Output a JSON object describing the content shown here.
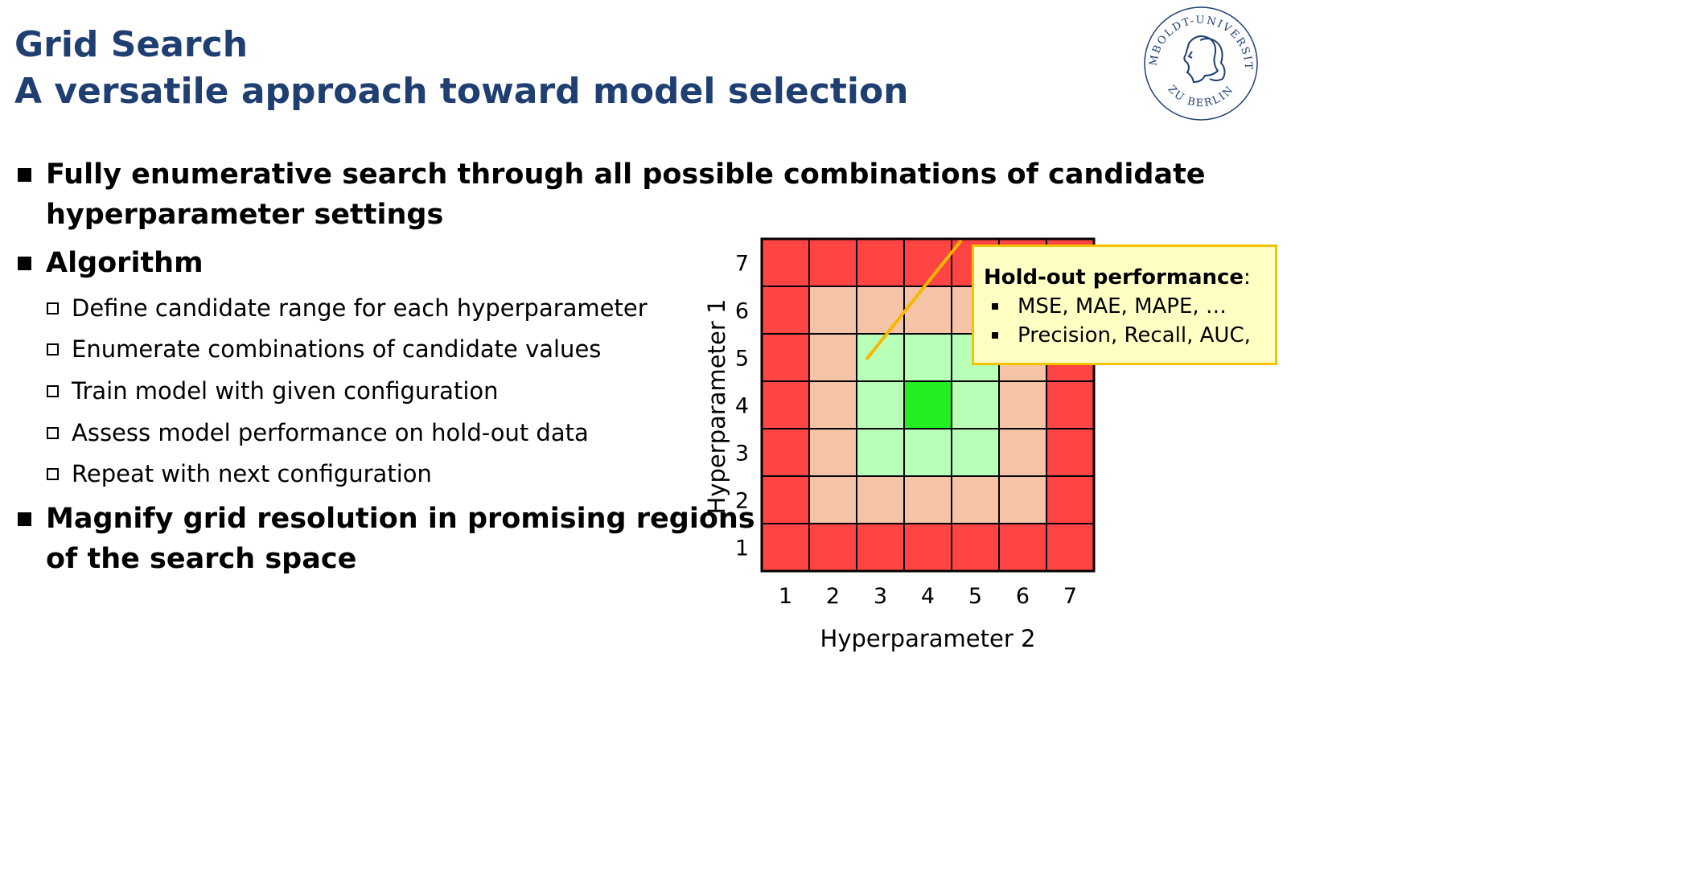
{
  "slide": {
    "title": "Grid Search",
    "subtitle": "A versatile approach toward model selection"
  },
  "logo": {
    "text_top": "HUMBOLDT-UNIVERSITÄT",
    "text_bottom": "ZU BERLIN"
  },
  "bullets": [
    {
      "line1": "Fully enumerative search through all possible combinations of candidate",
      "line2": "hyperparameter settings"
    },
    {
      "line1": "Algorithm",
      "line2": ""
    },
    {
      "line1": "Magnify grid resolution in promising regions",
      "line2": "of the search space"
    }
  ],
  "algorithm_steps": [
    "Define candidate range for each hyperparameter",
    "Enumerate combinations of candidate values",
    "Train model with given configuration",
    "Assess model performance on hold-out data",
    "Repeat with next configuration"
  ],
  "chart_data": {
    "type": "heatmap",
    "xlabel": "Hyperparameter 2",
    "ylabel": "Hyperparameter 1",
    "x_ticks": [
      "1",
      "2",
      "3",
      "4",
      "5",
      "6",
      "7"
    ],
    "y_ticks": [
      "1",
      "2",
      "3",
      "4",
      "5",
      "6",
      "7"
    ],
    "levels": [
      [
        0,
        0,
        0,
        0,
        0,
        0,
        0
      ],
      [
        0,
        1,
        1,
        1,
        1,
        1,
        0
      ],
      [
        0,
        1,
        2,
        2,
        2,
        1,
        0
      ],
      [
        0,
        1,
        2,
        3,
        2,
        1,
        0
      ],
      [
        0,
        1,
        2,
        2,
        2,
        1,
        0
      ],
      [
        0,
        1,
        1,
        1,
        1,
        1,
        0
      ],
      [
        0,
        0,
        0,
        0,
        0,
        0,
        0
      ]
    ],
    "level_colors": [
      "#ff4444",
      "#f5c4a6",
      "#b8ffb8",
      "#22ee22"
    ],
    "line_color": "#f5b800",
    "grid": true
  },
  "callout": {
    "heading": "Hold-out performance",
    "heading_suffix": ":",
    "items": [
      "MSE, MAE, MAPE, …",
      "Precision, Recall, AUC,"
    ]
  }
}
